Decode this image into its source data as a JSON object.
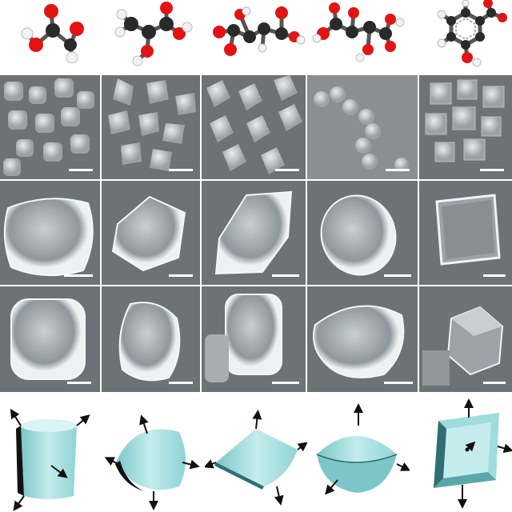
{
  "figure": {
    "columns": [
      {
        "molecule_icon": "glycolic-acid-ball-and-stick",
        "crystal_shape": "curved-cube"
      },
      {
        "molecule_icon": "lactic-acid-ball-and-stick",
        "crystal_shape": "lens-rhomb"
      },
      {
        "molecule_icon": "malic-acid-ball-and-stick",
        "crystal_shape": "rhombohedron"
      },
      {
        "molecule_icon": "tartaric-acid-ball-and-stick",
        "crystal_shape": "lens-spheroid"
      },
      {
        "molecule_icon": "salicylic-acid-ball-and-stick",
        "crystal_shape": "cube"
      }
    ],
    "sem_rows": 3,
    "colors": {
      "atom_carbon": "#2a2a2a",
      "atom_oxygen": "#e11414",
      "atom_hydrogen": "#f2f2f2",
      "sem_background": "#6d7276",
      "model_fill": "#9fdcdc",
      "arrow": "#111111"
    }
  }
}
